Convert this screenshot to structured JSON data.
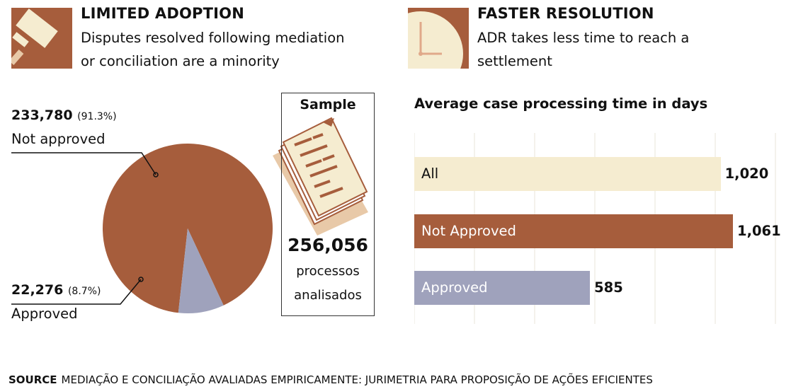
{
  "left_section": {
    "title": "LIMITED ADOPTION",
    "subtitle_line1": "Disputes resolved following mediation",
    "subtitle_line2": "or conciliation are a minority",
    "icon": "gavel-icon"
  },
  "right_section": {
    "title": "FASTER RESOLUTION",
    "subtitle_line1": "ADR takes less time to reach a",
    "subtitle_line2": "settlement",
    "icon": "clock-icon"
  },
  "pie": {
    "not_approved_value": "233,780",
    "not_approved_pct": "(91.3%)",
    "not_approved_label": "Not approved",
    "approved_value": "22,276",
    "approved_pct": "(8.7%)",
    "approved_label": "Approved"
  },
  "sample": {
    "title": "Sample",
    "number": "256,056",
    "line1": "processos",
    "line2": "analisados",
    "icon": "documents-icon"
  },
  "bar_chart_title": "Average case processing time in days",
  "colors": {
    "brown": "#a65d3c",
    "cream": "#f5ecd0",
    "lavender": "#9fa2bc",
    "grid": "#e8e4d8"
  },
  "chart_data": [
    {
      "type": "pie",
      "categories": [
        "Not approved",
        "Approved"
      ],
      "values": [
        233780,
        22276
      ],
      "percentages": [
        91.3,
        8.7
      ],
      "colors": [
        "#a65d3c",
        "#9fa2bc"
      ]
    },
    {
      "type": "bar",
      "orientation": "horizontal",
      "title": "Average case processing time in days",
      "categories": [
        "All",
        "Not Approved",
        "Approved"
      ],
      "values": [
        1020,
        1061,
        585
      ],
      "value_labels": [
        "1,020",
        "1,061",
        "585"
      ],
      "colors": [
        "#f5ecd0",
        "#a65d3c",
        "#9fa2bc"
      ],
      "label_colors": [
        "#111111",
        "#ffffff",
        "#ffffff"
      ],
      "xlim": [
        0,
        1100
      ],
      "grid": true
    }
  ],
  "source": {
    "label": "SOURCE",
    "text": "MEDIAÇÃO E CONCILIAÇÃO AVALIADAS EMPIRICAMENTE: JURIMETRIA PARA PROPOSIÇÃO DE AÇÕES EFICIENTES"
  }
}
